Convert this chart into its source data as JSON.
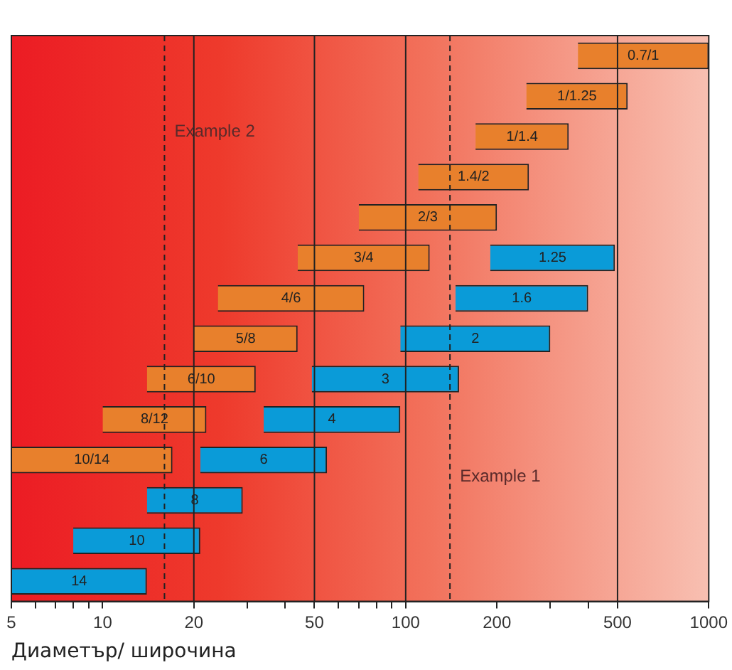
{
  "chart_data": {
    "type": "bar",
    "orientation": "horizontal",
    "xlabel": "Диаметър/ широчина",
    "log": "x",
    "xlim": [
      5,
      1000
    ],
    "xticks": [
      5,
      {
        "value": 6,
        "label": null
      },
      {
        "value": 7,
        "label": null
      },
      {
        "value": 8,
        "label": null
      },
      {
        "value": 9,
        "label": null
      },
      10,
      20,
      {
        "value": 30,
        "label": null
      },
      {
        "value": 40,
        "label": null
      },
      50,
      {
        "value": 60,
        "label": null
      },
      {
        "value": 70,
        "label": null
      },
      {
        "value": 80,
        "label": null
      },
      {
        "value": 90,
        "label": null
      },
      100,
      200,
      {
        "value": 300,
        "label": null
      },
      {
        "value": 400,
        "label": null
      },
      500,
      1000
    ],
    "categories": [
      null,
      null,
      null,
      null,
      null,
      null,
      null,
      null,
      null,
      null,
      null,
      null,
      null,
      null
    ],
    "series": [
      {
        "name": "0.7/1",
        "color": "#e8802c",
        "base": [
          370,
          null,
          null,
          null,
          null,
          null,
          null,
          null,
          null,
          null,
          null,
          null,
          null,
          null
        ],
        "values": [
          630,
          null,
          null,
          null,
          null,
          null,
          null,
          null,
          null,
          null,
          null,
          null,
          null,
          null
        ]
      },
      {
        "name": "1/1.25",
        "color": "#e8802c",
        "base": [
          null,
          250,
          null,
          null,
          null,
          null,
          null,
          null,
          null,
          null,
          null,
          null,
          null,
          null
        ],
        "values": [
          null,
          290,
          null,
          null,
          null,
          null,
          null,
          null,
          null,
          null,
          null,
          null,
          null,
          null
        ]
      },
      {
        "name": "1/1.4",
        "color": "#e8802c",
        "base": [
          null,
          null,
          170,
          null,
          null,
          null,
          null,
          null,
          null,
          null,
          null,
          null,
          null,
          null
        ],
        "values": [
          null,
          null,
          175,
          null,
          null,
          null,
          null,
          null,
          null,
          null,
          null,
          null,
          null,
          null
        ]
      },
      {
        "name": "1.4/2",
        "color": "#e8802c",
        "base": [
          null,
          null,
          null,
          110,
          null,
          null,
          null,
          null,
          null,
          null,
          null,
          null,
          null,
          null
        ],
        "values": [
          null,
          null,
          null,
          145,
          null,
          null,
          null,
          null,
          null,
          null,
          null,
          null,
          null,
          null
        ]
      },
      {
        "name": "2/3",
        "color": "#e8802c",
        "base": [
          null,
          null,
          null,
          null,
          70,
          null,
          null,
          null,
          null,
          null,
          null,
          null,
          null,
          null
        ],
        "values": [
          null,
          null,
          null,
          null,
          130,
          null,
          null,
          null,
          null,
          null,
          null,
          null,
          null,
          null
        ]
      },
      {
        "name": "3/4",
        "color": "#e8802c",
        "base": [
          null,
          null,
          null,
          null,
          null,
          44,
          null,
          null,
          null,
          null,
          null,
          null,
          null,
          null
        ],
        "values": [
          null,
          null,
          null,
          null,
          null,
          76,
          null,
          null,
          null,
          null,
          null,
          null,
          null,
          null
        ]
      },
      {
        "name": "4/6",
        "color": "#e8802c",
        "base": [
          null,
          null,
          null,
          null,
          null,
          null,
          24,
          null,
          null,
          null,
          null,
          null,
          null,
          null
        ],
        "values": [
          null,
          null,
          null,
          null,
          null,
          null,
          49,
          null,
          null,
          null,
          null,
          null,
          null,
          null
        ]
      },
      {
        "name": "5/8",
        "color": "#e8802c",
        "base": [
          null,
          null,
          null,
          null,
          null,
          null,
          null,
          20,
          null,
          null,
          null,
          null,
          null,
          null
        ],
        "values": [
          null,
          null,
          null,
          null,
          null,
          null,
          null,
          24,
          null,
          null,
          null,
          null,
          null,
          null
        ]
      },
      {
        "name": "6/10",
        "color": "#e8802c",
        "base": [
          null,
          null,
          null,
          null,
          null,
          null,
          null,
          null,
          14,
          null,
          null,
          null,
          null,
          null
        ],
        "values": [
          null,
          null,
          null,
          null,
          null,
          null,
          null,
          null,
          18,
          null,
          null,
          null,
          null,
          null
        ]
      },
      {
        "name": "8/12",
        "color": "#e8802c",
        "base": [
          null,
          null,
          null,
          null,
          null,
          null,
          null,
          null,
          null,
          10,
          null,
          null,
          null,
          null
        ],
        "values": [
          null,
          null,
          null,
          null,
          null,
          null,
          null,
          null,
          null,
          12,
          null,
          null,
          null,
          null
        ]
      },
      {
        "name": "10/14",
        "color": "#e8802c",
        "base": [
          null,
          null,
          null,
          null,
          null,
          null,
          null,
          null,
          null,
          null,
          5,
          null,
          null,
          null
        ],
        "values": [
          null,
          null,
          null,
          null,
          null,
          null,
          null,
          null,
          null,
          null,
          12,
          null,
          null,
          null
        ]
      },
      {
        "name": "1.25",
        "color": "#0a9bd8",
        "base": [
          null,
          null,
          null,
          null,
          null,
          190,
          null,
          null,
          null,
          null,
          null,
          null,
          null,
          null
        ],
        "values": [
          null,
          null,
          null,
          null,
          null,
          300,
          null,
          null,
          null,
          null,
          null,
          null,
          null,
          null
        ]
      },
      {
        "name": "1.6",
        "color": "#0a9bd8",
        "base": [
          null,
          null,
          null,
          null,
          null,
          null,
          146,
          null,
          null,
          null,
          null,
          null,
          null,
          null
        ],
        "values": [
          null,
          null,
          null,
          null,
          null,
          null,
          254,
          null,
          null,
          null,
          null,
          null,
          null,
          null
        ]
      },
      {
        "name": "2",
        "color": "#0a9bd8",
        "base": [
          null,
          null,
          null,
          null,
          null,
          null,
          null,
          96,
          null,
          null,
          null,
          null,
          null,
          null
        ],
        "values": [
          null,
          null,
          null,
          null,
          null,
          null,
          null,
          204,
          null,
          null,
          null,
          null,
          null,
          null
        ]
      },
      {
        "name": "3",
        "color": "#0a9bd8",
        "base": [
          null,
          null,
          null,
          null,
          null,
          null,
          null,
          null,
          49,
          null,
          null,
          null,
          null,
          null
        ],
        "values": [
          null,
          null,
          null,
          null,
          null,
          null,
          null,
          null,
          101,
          null,
          null,
          null,
          null,
          null
        ]
      },
      {
        "name": "4",
        "color": "#0a9bd8",
        "base": [
          null,
          null,
          null,
          null,
          null,
          null,
          null,
          null,
          null,
          34,
          null,
          null,
          null,
          null
        ],
        "values": [
          null,
          null,
          null,
          null,
          null,
          null,
          null,
          null,
          null,
          62,
          null,
          null,
          null,
          null
        ]
      },
      {
        "name": "6",
        "color": "#0a9bd8",
        "base": [
          null,
          null,
          null,
          null,
          null,
          null,
          null,
          null,
          null,
          null,
          21,
          null,
          null,
          null
        ],
        "values": [
          null,
          null,
          null,
          null,
          null,
          null,
          null,
          null,
          null,
          null,
          34,
          null,
          null,
          null
        ]
      },
      {
        "name": "8",
        "color": "#0a9bd8",
        "base": [
          null,
          null,
          null,
          null,
          null,
          null,
          null,
          null,
          null,
          null,
          null,
          14,
          null,
          null
        ],
        "values": [
          null,
          null,
          null,
          null,
          null,
          null,
          null,
          null,
          null,
          null,
          null,
          15,
          null,
          null
        ]
      },
      {
        "name": "10",
        "color": "#0a9bd8",
        "base": [
          null,
          null,
          null,
          null,
          null,
          null,
          null,
          null,
          null,
          null,
          null,
          null,
          8,
          null
        ],
        "values": [
          null,
          null,
          null,
          null,
          null,
          null,
          null,
          null,
          null,
          null,
          null,
          null,
          13,
          null
        ]
      },
      {
        "name": "14",
        "color": "#0a9bd8",
        "base": [
          null,
          null,
          null,
          null,
          null,
          null,
          null,
          null,
          null,
          null,
          null,
          null,
          null,
          5
        ],
        "values": [
          null,
          null,
          null,
          null,
          null,
          null,
          null,
          null,
          null,
          null,
          null,
          null,
          null,
          9
        ]
      }
    ],
    "ref_lines": [
      {
        "axis": "x",
        "value": 20
      },
      {
        "axis": "x",
        "value": 50
      },
      {
        "axis": "x",
        "value": 100
      },
      {
        "axis": "x",
        "value": 500
      },
      {
        "axis": "x",
        "value": 16,
        "label": "Example 2",
        "line_style": "dashed"
      },
      {
        "axis": "x",
        "value": 140,
        "label": "Example 1",
        "line_style": "dashed"
      }
    ],
    "grid": false,
    "legend": false,
    "tick_labels": "x"
  }
}
